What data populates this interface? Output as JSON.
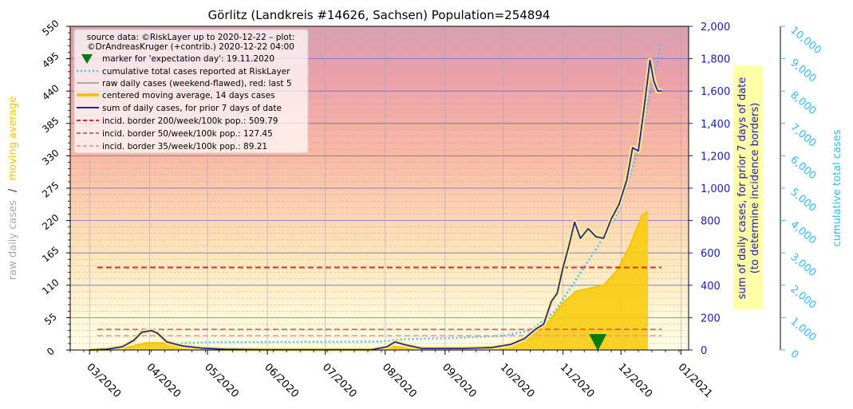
{
  "chart_data": {
    "type": "line",
    "title": "Görlitz (Landkreis #14626, Sachsen) Population=254894",
    "ylabel_left": [
      "raw daily cases",
      "/",
      "moving average"
    ],
    "ylabel_right1": [
      "sum of daily cases, for prior 7 days of date",
      "(to determine incidence borders)"
    ],
    "ylabel_right2": "cumulative total cases",
    "x_ticks": [
      "03/2020",
      "04/2020",
      "05/2020",
      "06/2020",
      "07/2020",
      "08/2020",
      "09/2020",
      "10/2020",
      "11/2020",
      "12/2020",
      "01/2021"
    ],
    "x_range": [
      "2020-02-20",
      "2021-01-05"
    ],
    "left_axis": {
      "range": [
        0,
        550
      ],
      "ticks": [
        "0",
        "55",
        "110",
        "165",
        "220",
        "275",
        "330",
        "385",
        "440",
        "495",
        "550"
      ]
    },
    "right_axis_1": {
      "range": [
        0,
        2000
      ],
      "ticks": [
        "0",
        "200",
        "400",
        "600",
        "800",
        "1,000",
        "1,200",
        "1,400",
        "1,600",
        "1,800",
        "2,000"
      ]
    },
    "right_axis_2": {
      "range": [
        0,
        10000
      ],
      "ticks": [
        "0",
        "1,000",
        "2,000",
        "3,000",
        "4,000",
        "5,000",
        "6,000",
        "7,000",
        "8,000",
        "9,000",
        "10,000"
      ]
    },
    "legend": {
      "source_lines": [
        "source data: ©RiskLayer up to 2020-12-22 – plot:",
        "©DrAndreasKruger (+contrib.) 2020-12-22 04:00"
      ],
      "entries": [
        "marker for 'expectation day': 19.11.2020",
        "cumulative total cases reported at RiskLayer",
        "raw daily cases (weekend-flawed), red: last 5",
        "centered moving average, 14 days cases",
        "sum of daily cases, for prior 7 days of date",
        "incid. border 200/week/100k pop.: 509.79",
        "incid. border 50/week/100k pop.: 127.45",
        "incid. border 35/week/100k pop.: 89.21"
      ],
      "placement": "top-left"
    },
    "incidence_borders": [
      509.79,
      127.45,
      89.21
    ],
    "expectation_day": "2020-11-19",
    "series": [
      {
        "name": "sum of daily cases, for prior 7 days of date",
        "axis": "right_axis_1",
        "points": [
          [
            "2020-03-01",
            0
          ],
          [
            "2020-03-10",
            5
          ],
          [
            "2020-03-18",
            20
          ],
          [
            "2020-03-24",
            60
          ],
          [
            "2020-03-28",
            110
          ],
          [
            "2020-04-02",
            120
          ],
          [
            "2020-04-05",
            105
          ],
          [
            "2020-04-10",
            50
          ],
          [
            "2020-04-18",
            25
          ],
          [
            "2020-04-28",
            12
          ],
          [
            "2020-05-10",
            5
          ],
          [
            "2020-05-30",
            2
          ],
          [
            "2020-06-30",
            2
          ],
          [
            "2020-07-25",
            2
          ],
          [
            "2020-08-02",
            20
          ],
          [
            "2020-08-06",
            50
          ],
          [
            "2020-08-12",
            30
          ],
          [
            "2020-08-20",
            10
          ],
          [
            "2020-09-10",
            10
          ],
          [
            "2020-09-25",
            15
          ],
          [
            "2020-10-05",
            35
          ],
          [
            "2020-10-12",
            70
          ],
          [
            "2020-10-18",
            130
          ],
          [
            "2020-10-22",
            160
          ],
          [
            "2020-10-26",
            300
          ],
          [
            "2020-10-29",
            350
          ],
          [
            "2020-11-01",
            510
          ],
          [
            "2020-11-04",
            640
          ],
          [
            "2020-11-07",
            790
          ],
          [
            "2020-11-10",
            690
          ],
          [
            "2020-11-14",
            750
          ],
          [
            "2020-11-18",
            700
          ],
          [
            "2020-11-22",
            690
          ],
          [
            "2020-11-26",
            810
          ],
          [
            "2020-11-30",
            900
          ],
          [
            "2020-12-04",
            1050
          ],
          [
            "2020-12-07",
            1250
          ],
          [
            "2020-12-10",
            1230
          ],
          [
            "2020-12-13",
            1500
          ],
          [
            "2020-12-16",
            1790
          ],
          [
            "2020-12-18",
            1660
          ],
          [
            "2020-12-20",
            1600
          ],
          [
            "2020-12-22",
            1600
          ]
        ]
      },
      {
        "name": "centered moving average, 14 days cases",
        "axis": "left_axis",
        "points": [
          [
            "2020-03-01",
            0
          ],
          [
            "2020-03-20",
            4
          ],
          [
            "2020-03-30",
            12
          ],
          [
            "2020-04-08",
            12
          ],
          [
            "2020-04-20",
            4
          ],
          [
            "2020-05-10",
            1
          ],
          [
            "2020-07-25",
            1
          ],
          [
            "2020-08-05",
            6
          ],
          [
            "2020-08-15",
            3
          ],
          [
            "2020-09-15",
            3
          ],
          [
            "2020-10-05",
            8
          ],
          [
            "2020-10-15",
            20
          ],
          [
            "2020-10-25",
            50
          ],
          [
            "2020-11-01",
            80
          ],
          [
            "2020-11-08",
            100
          ],
          [
            "2020-11-15",
            105
          ],
          [
            "2020-11-22",
            110
          ],
          [
            "2020-11-29",
            135
          ],
          [
            "2020-12-06",
            180
          ],
          [
            "2020-12-12",
            230
          ],
          [
            "2020-12-15",
            235
          ]
        ]
      },
      {
        "name": "cumulative total cases reported at RiskLayer",
        "axis": "right_axis_2",
        "points": [
          [
            "2020-03-01",
            0
          ],
          [
            "2020-03-20",
            50
          ],
          [
            "2020-04-05",
            190
          ],
          [
            "2020-05-01",
            240
          ],
          [
            "2020-07-30",
            260
          ],
          [
            "2020-08-10",
            330
          ],
          [
            "2020-09-10",
            380
          ],
          [
            "2020-10-01",
            440
          ],
          [
            "2020-10-15",
            600
          ],
          [
            "2020-10-28",
            1200
          ],
          [
            "2020-11-08",
            2200
          ],
          [
            "2020-11-19",
            3200
          ],
          [
            "2020-11-30",
            4300
          ],
          [
            "2020-12-10",
            6200
          ],
          [
            "2020-12-17",
            8200
          ],
          [
            "2020-12-22",
            9500
          ]
        ]
      }
    ]
  }
}
